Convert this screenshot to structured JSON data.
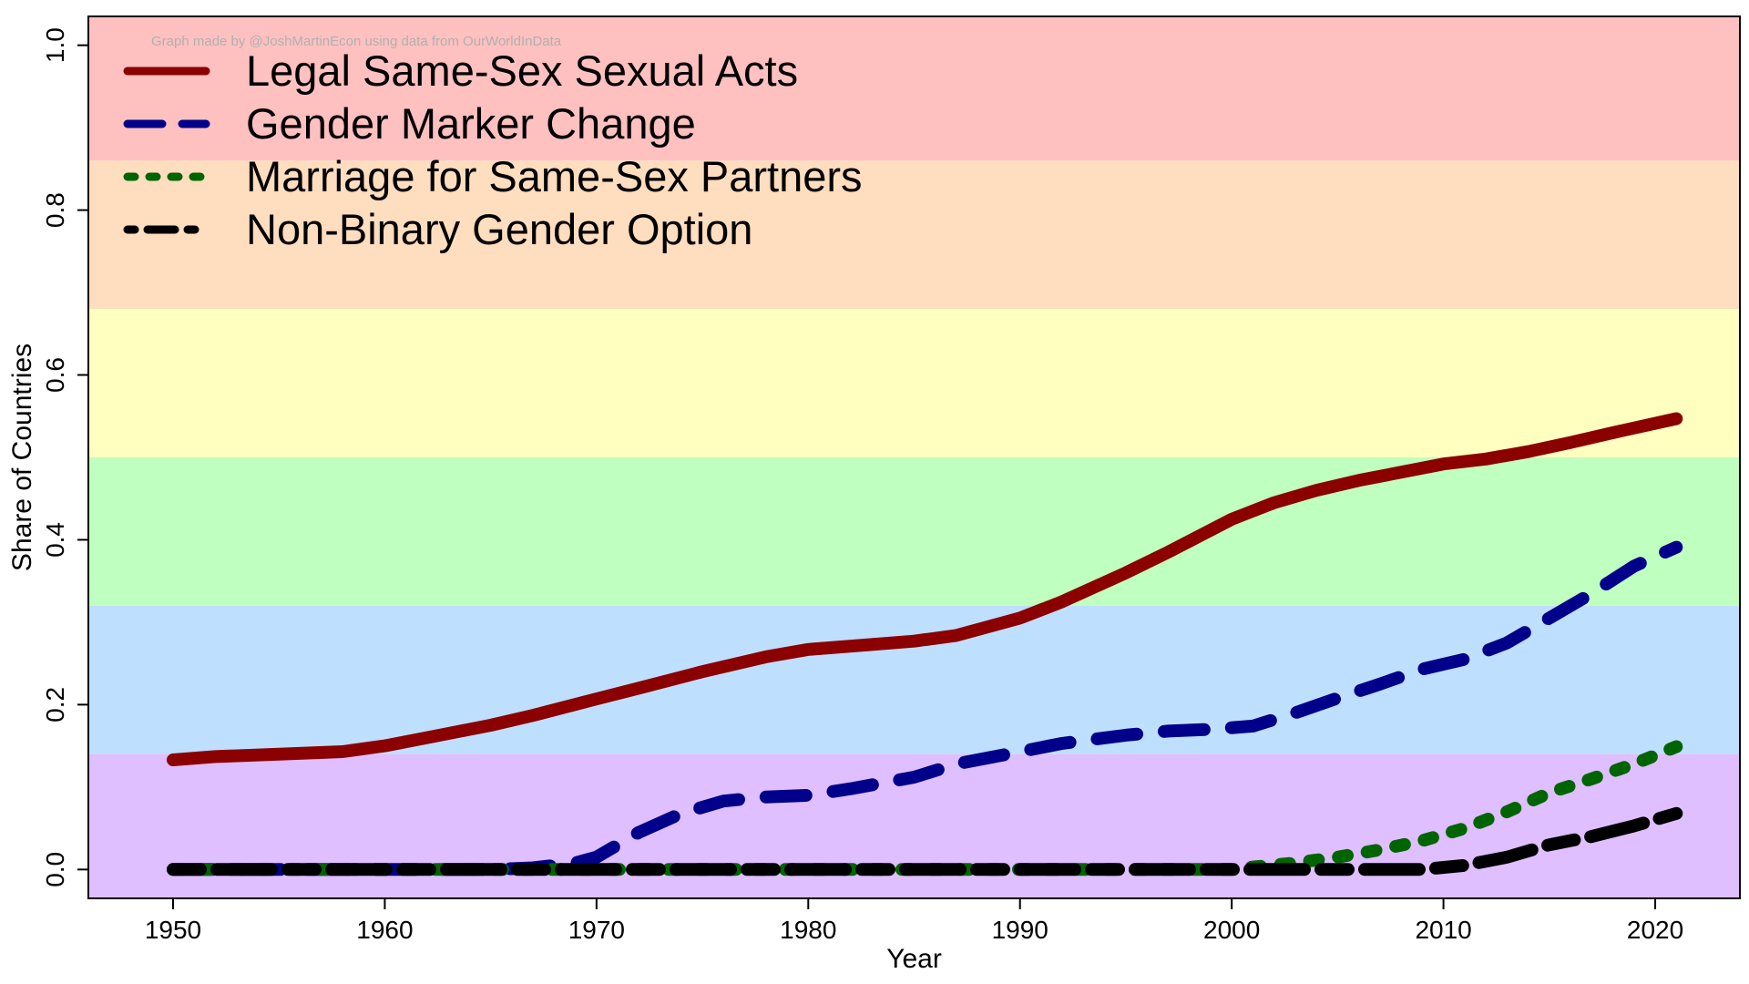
{
  "credit": "Graph made by @JoshMartinEcon using data from OurWorldInData",
  "chart_data": {
    "type": "line",
    "title": "",
    "xlabel": "Year",
    "ylabel": "Share of Countries",
    "xlim": [
      1946,
      2024
    ],
    "ylim": [
      -0.035,
      1.035
    ],
    "xticks": [
      1950,
      1960,
      1970,
      1980,
      1990,
      2000,
      2010,
      2020
    ],
    "yticks": [
      0.0,
      0.2,
      0.4,
      0.6,
      0.8,
      1.0
    ],
    "ytick_labels": [
      "0.0",
      "0.2",
      "0.4",
      "0.6",
      "0.8",
      "1.0"
    ],
    "grid": false,
    "legend_position": "top-left",
    "background_bands": [
      {
        "from": 0.86,
        "to": 1.035,
        "color": "#FFC0C0"
      },
      {
        "from": 0.68,
        "to": 0.86,
        "color": "#FFDDBF"
      },
      {
        "from": 0.5,
        "to": 0.68,
        "color": "#FFFFBF"
      },
      {
        "from": 0.32,
        "to": 0.5,
        "color": "#BFFFBF"
      },
      {
        "from": 0.14,
        "to": 0.32,
        "color": "#BFDFFF"
      },
      {
        "from": -0.035,
        "to": 0.14,
        "color": "#DFBFFF"
      }
    ],
    "series": [
      {
        "name": "Legal Same-Sex Sexual Acts",
        "color": "#8B0000",
        "dash": "solid",
        "points": [
          [
            1950,
            0.133
          ],
          [
            1952,
            0.137
          ],
          [
            1955,
            0.14
          ],
          [
            1958,
            0.143
          ],
          [
            1960,
            0.15
          ],
          [
            1962,
            0.16
          ],
          [
            1965,
            0.175
          ],
          [
            1967,
            0.187
          ],
          [
            1970,
            0.207
          ],
          [
            1972,
            0.22
          ],
          [
            1975,
            0.24
          ],
          [
            1978,
            0.258
          ],
          [
            1980,
            0.267
          ],
          [
            1983,
            0.273
          ],
          [
            1985,
            0.277
          ],
          [
            1987,
            0.284
          ],
          [
            1990,
            0.305
          ],
          [
            1992,
            0.325
          ],
          [
            1995,
            0.36
          ],
          [
            1997,
            0.385
          ],
          [
            2000,
            0.425
          ],
          [
            2002,
            0.445
          ],
          [
            2004,
            0.46
          ],
          [
            2006,
            0.472
          ],
          [
            2008,
            0.482
          ],
          [
            2010,
            0.492
          ],
          [
            2012,
            0.498
          ],
          [
            2014,
            0.507
          ],
          [
            2016,
            0.518
          ],
          [
            2018,
            0.53
          ],
          [
            2021,
            0.547
          ]
        ]
      },
      {
        "name": "Gender Marker Change",
        "color": "#00008B",
        "dash": "dashed",
        "points": [
          [
            1950,
            0.0
          ],
          [
            1965,
            0.0
          ],
          [
            1967,
            0.002
          ],
          [
            1969,
            0.008
          ],
          [
            1970,
            0.015
          ],
          [
            1972,
            0.045
          ],
          [
            1974,
            0.068
          ],
          [
            1976,
            0.083
          ],
          [
            1978,
            0.088
          ],
          [
            1980,
            0.09
          ],
          [
            1982,
            0.098
          ],
          [
            1985,
            0.112
          ],
          [
            1987,
            0.128
          ],
          [
            1990,
            0.143
          ],
          [
            1992,
            0.153
          ],
          [
            1995,
            0.163
          ],
          [
            1997,
            0.168
          ],
          [
            1999,
            0.17
          ],
          [
            2001,
            0.174
          ],
          [
            2003,
            0.19
          ],
          [
            2005,
            0.208
          ],
          [
            2007,
            0.225
          ],
          [
            2009,
            0.243
          ],
          [
            2011,
            0.255
          ],
          [
            2013,
            0.275
          ],
          [
            2015,
            0.305
          ],
          [
            2017,
            0.335
          ],
          [
            2019,
            0.368
          ],
          [
            2021,
            0.391
          ]
        ]
      },
      {
        "name": "Marriage for Same-Sex Partners",
        "color": "#006400",
        "dash": "dotted",
        "points": [
          [
            1950,
            0.0
          ],
          [
            2000,
            0.0
          ],
          [
            2001,
            0.003
          ],
          [
            2003,
            0.008
          ],
          [
            2005,
            0.015
          ],
          [
            2007,
            0.024
          ],
          [
            2009,
            0.035
          ],
          [
            2011,
            0.05
          ],
          [
            2013,
            0.07
          ],
          [
            2015,
            0.093
          ],
          [
            2017,
            0.11
          ],
          [
            2019,
            0.128
          ],
          [
            2021,
            0.149
          ]
        ]
      },
      {
        "name": "Non-Binary Gender Option",
        "color": "#000000",
        "dash": "longdash",
        "points": [
          [
            1950,
            0.0
          ],
          [
            2009,
            0.0
          ],
          [
            2011,
            0.005
          ],
          [
            2013,
            0.015
          ],
          [
            2015,
            0.03
          ],
          [
            2017,
            0.04
          ],
          [
            2019,
            0.053
          ],
          [
            2021,
            0.068
          ]
        ]
      }
    ]
  }
}
